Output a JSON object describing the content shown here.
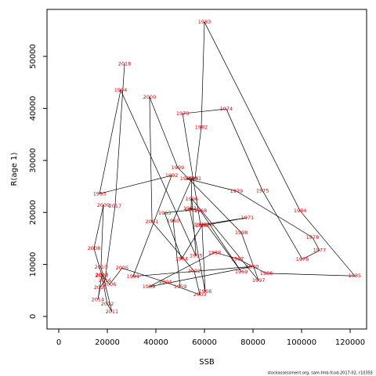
{
  "chart_data": {
    "type": "scatter",
    "x_label": "SSB",
    "y_label": "R(age 1)",
    "footer": "stockassessment.org, sam-tmb-fcod-2017-02, r10355",
    "point_labels": [
      "1959",
      "1960",
      "1961",
      "1962",
      "1963",
      "1964",
      "1965",
      "1966",
      "1967",
      "1968",
      "1969",
      "1970",
      "1971",
      "1972",
      "1973",
      "1974",
      "1975",
      "1976",
      "1977",
      "1978",
      "1979",
      "1980",
      "1981",
      "1982",
      "1983",
      "1984",
      "1985",
      "1986",
      "1987",
      "1988",
      "1989",
      "1990",
      "1991",
      "1992",
      "1993",
      "1994",
      "1995",
      "1996",
      "1997",
      "1998",
      "1999",
      "2000",
      "2001",
      "2002",
      "2003",
      "2004",
      "2005",
      "2006",
      "2007",
      "2008",
      "2009",
      "2010",
      "2011",
      "2012",
      "2013",
      "2014",
      "2015",
      "2016",
      "2017",
      "2018"
    ],
    "x": [
      50000,
      47100,
      54800,
      54500,
      43600,
      50600,
      59000,
      60300,
      53900,
      58400,
      75200,
      61000,
      77700,
      58400,
      51000,
      69000,
      83900,
      100300,
      107400,
      104500,
      73200,
      52600,
      56100,
      58700,
      60000,
      99400,
      121900,
      85500,
      73600,
      64200,
      37100,
      79700,
      30600,
      46500,
      16800,
      25500,
      56500,
      54800,
      82300,
      75200,
      49000,
      37400,
      38400,
      55800,
      58100,
      43900,
      26100,
      21000,
      17700,
      14500,
      18400,
      17400,
      21900,
      20000,
      17700,
      16100,
      17100,
      19000,
      23200,
      27100
    ],
    "y": [
      5700,
      18400,
      26500,
      20500,
      19900,
      11100,
      17500,
      4800,
      20800,
      20300,
      8600,
      17600,
      19000,
      17600,
      39000,
      39900,
      24200,
      11000,
      12700,
      15200,
      24100,
      26500,
      26500,
      36400,
      56600,
      20300,
      7800,
      8300,
      11100,
      12300,
      5700,
      9600,
      7700,
      27100,
      23600,
      43500,
      11700,
      22600,
      6900,
      16100,
      28600,
      42200,
      18200,
      8700,
      4200,
      6600,
      9300,
      6200,
      8000,
      13100,
      21400,
      9500,
      900,
      2400,
      7800,
      3200,
      5600,
      6900,
      21200,
      48600
    ],
    "line_color": "#000000",
    "label_color": "#e00000",
    "xlim": [
      -4839,
      126774
    ],
    "ylim": [
      -2410,
      59036
    ],
    "xticks": [
      0,
      20000,
      40000,
      60000,
      80000,
      100000,
      120000
    ],
    "yticks": [
      0,
      10000,
      20000,
      30000,
      40000,
      50000
    ]
  }
}
